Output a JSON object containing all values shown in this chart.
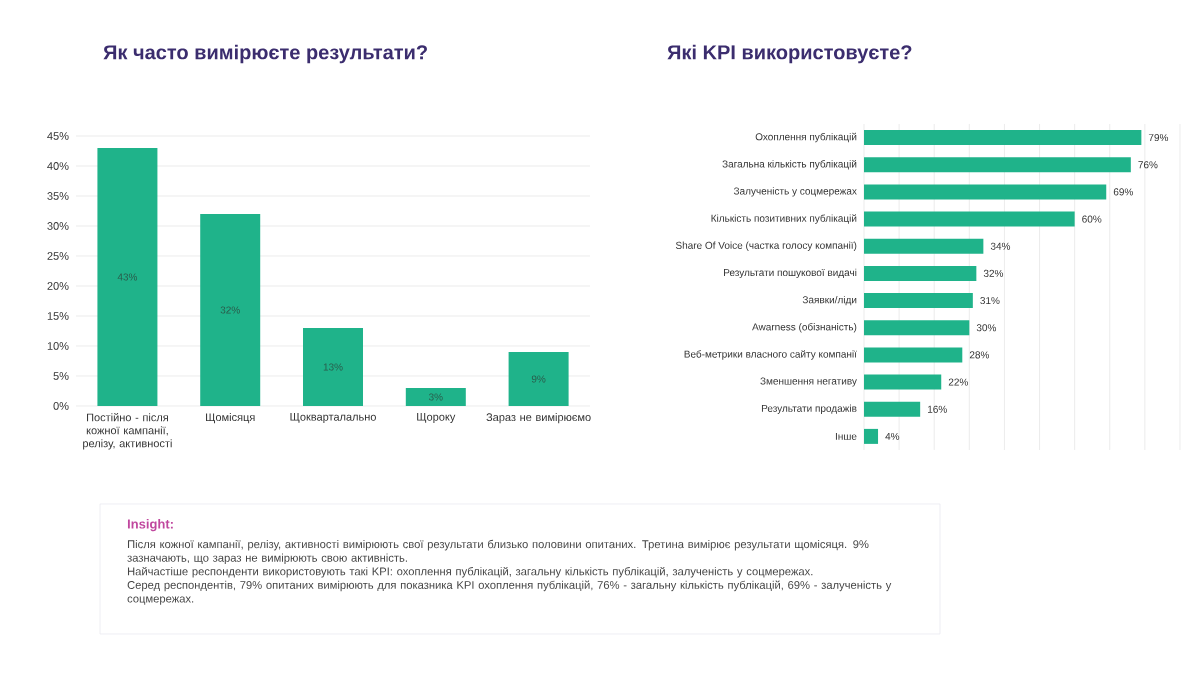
{
  "chart_data": [
    {
      "type": "bar",
      "title": "Як часто вимірюєте результати?",
      "categories": [
        "Постійно - після кожної кампанії, релізу, активності",
        "Щомісяця",
        "Щокварталально",
        "Щороку",
        "Зараз не вимірюємо"
      ],
      "values": [
        43,
        32,
        13,
        3,
        9
      ],
      "value_labels": [
        "43%",
        "32%",
        "13%",
        "3%",
        "9%"
      ],
      "color": "#1fb38a",
      "ylim": [
        0,
        45
      ],
      "yticks": [
        {
          "value": 0,
          "label": "0%"
        },
        {
          "value": 5,
          "label": "5%"
        },
        {
          "value": 10,
          "label": "10%"
        },
        {
          "value": 15,
          "label": "15%"
        },
        {
          "value": 20,
          "label": "20%"
        },
        {
          "value": 25,
          "label": "25%"
        },
        {
          "value": 30,
          "label": "30%"
        },
        {
          "value": 35,
          "label": "35%"
        },
        {
          "value": 40,
          "label": "40%"
        },
        {
          "value": 45,
          "label": "45%"
        }
      ],
      "grid": "y"
    },
    {
      "type": "bar",
      "orientation": "horizontal",
      "title": "Які KPI використовуєте?",
      "categories": [
        "Охоплення публікацій",
        "Загальна кількість публікацій",
        "Залученість у соцмережах",
        "Кількість позитивних публікацій",
        "Share Of Voice (частка голосу компанії)",
        "Результати пошукової видачі",
        "Заявки/ліди",
        "Awarness (обізнаність)",
        "Веб-метрики власного сайту компанії",
        "Зменшення негативу",
        "Результати продажів",
        "Інше"
      ],
      "values": [
        79,
        76,
        69,
        60,
        34,
        32,
        31,
        30,
        28,
        22,
        16,
        4
      ],
      "value_labels": [
        "79%",
        "76%",
        "69%",
        "60%",
        "34%",
        "32%",
        "31%",
        "30%",
        "28%",
        "22%",
        "16%",
        "4%"
      ],
      "color": "#1fb38a",
      "xlim": [
        0,
        90
      ],
      "xticks": [
        {
          "value": 0,
          "label": null
        },
        {
          "value": 10,
          "label": null
        },
        {
          "value": 20,
          "label": null
        },
        {
          "value": 30,
          "label": null
        },
        {
          "value": 40,
          "label": null
        },
        {
          "value": 50,
          "label": null
        },
        {
          "value": 60,
          "label": null
        },
        {
          "value": 70,
          "label": null
        },
        {
          "value": 80,
          "label": null
        },
        {
          "value": 90,
          "label": null
        }
      ],
      "grid": "x",
      "tick_labels": "y"
    },
    {
      "type": "other",
      "title": "Insight:",
      "annotations": [
        "Після кожної кампанії, релізу, активності вимірюють свої результати близько половини опитаних. Третина вимірює результати щомісяця. 9% зазначають, що зараз не вимірюють свою активність.",
        "Найчастіше респонденти використовують такі KPI: охоплення публікацій, загальну кількість публікацій, залученість у соцмережах.",
        "Серед респондентів, 79% опитаних вимірюють для показника KPI охоплення публікацій, 76% - загальну кількість публікацій, 69% - залученість у соцмережах."
      ]
    }
  ]
}
